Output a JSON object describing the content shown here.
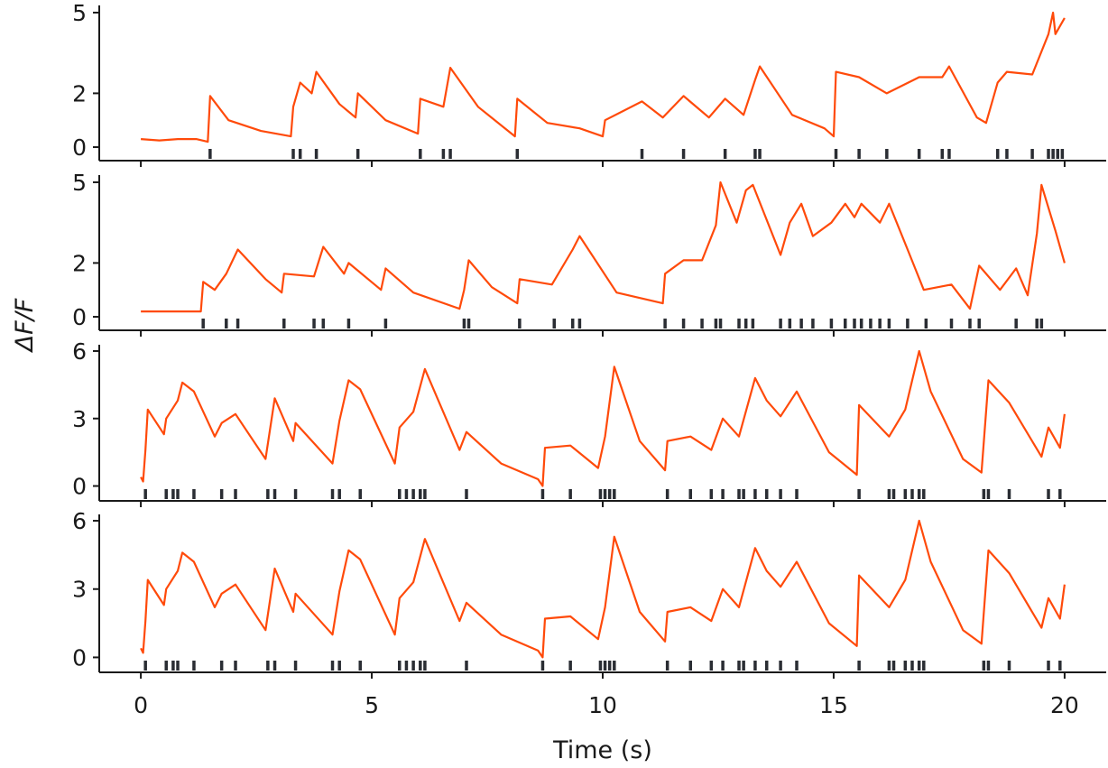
{
  "chart_data": {
    "type": "line",
    "xlabel": "Time (s)",
    "ylabel": "ΔF/F",
    "xlim": [
      -0.9,
      20.9
    ],
    "xticks": [
      0,
      5,
      10,
      15,
      20
    ],
    "trace_color": "#ff4a0a",
    "spike_color": "#2a2d33",
    "panels": [
      {
        "yticks": [
          0,
          2,
          5
        ],
        "ylim": [
          -0.2,
          5.2
        ],
        "spikes": [
          1.5,
          3.3,
          3.45,
          3.8,
          4.7,
          6.05,
          6.55,
          6.7,
          8.15,
          10.85,
          11.75,
          12.65,
          13.3,
          13.4,
          15.05,
          15.55,
          16.15,
          16.85,
          17.35,
          17.5,
          18.55,
          18.75,
          19.3,
          19.65,
          19.75,
          19.85,
          19.95
        ],
        "trace": [
          [
            0,
            0.3
          ],
          [
            0.4,
            0.25
          ],
          [
            0.8,
            0.3
          ],
          [
            1.2,
            0.3
          ],
          [
            1.45,
            0.2
          ],
          [
            1.5,
            1.9
          ],
          [
            1.9,
            1.0
          ],
          [
            2.6,
            0.6
          ],
          [
            3.25,
            0.4
          ],
          [
            3.3,
            1.5
          ],
          [
            3.45,
            2.4
          ],
          [
            3.7,
            2.0
          ],
          [
            3.8,
            2.8
          ],
          [
            4.3,
            1.6
          ],
          [
            4.65,
            1.1
          ],
          [
            4.7,
            2.0
          ],
          [
            5.3,
            1.0
          ],
          [
            6.0,
            0.5
          ],
          [
            6.05,
            1.8
          ],
          [
            6.55,
            1.5
          ],
          [
            6.7,
            2.95
          ],
          [
            7.3,
            1.5
          ],
          [
            8.1,
            0.4
          ],
          [
            8.15,
            1.8
          ],
          [
            8.8,
            0.9
          ],
          [
            9.5,
            0.7
          ],
          [
            10.0,
            0.4
          ],
          [
            10.05,
            1.0
          ],
          [
            10.85,
            1.7
          ],
          [
            11.3,
            1.1
          ],
          [
            11.75,
            1.9
          ],
          [
            12.3,
            1.1
          ],
          [
            12.65,
            1.8
          ],
          [
            13.05,
            1.2
          ],
          [
            13.3,
            2.5
          ],
          [
            13.4,
            3.0
          ],
          [
            14.1,
            1.2
          ],
          [
            14.8,
            0.7
          ],
          [
            15.0,
            0.4
          ],
          [
            15.05,
            2.8
          ],
          [
            15.55,
            2.6
          ],
          [
            16.15,
            2.0
          ],
          [
            16.85,
            2.6
          ],
          [
            17.35,
            2.6
          ],
          [
            17.5,
            3.0
          ],
          [
            18.1,
            1.1
          ],
          [
            18.3,
            0.9
          ],
          [
            18.55,
            2.4
          ],
          [
            18.75,
            2.8
          ],
          [
            19.3,
            2.7
          ],
          [
            19.65,
            4.2
          ],
          [
            19.75,
            5.0
          ],
          [
            19.8,
            4.2
          ],
          [
            20.0,
            4.8
          ]
        ]
      },
      {
        "yticks": [
          0,
          2,
          5
        ],
        "ylim": [
          -0.2,
          5.2
        ],
        "spikes": [
          1.35,
          1.85,
          2.1,
          3.1,
          3.75,
          3.95,
          4.5,
          5.3,
          7.0,
          7.1,
          8.2,
          8.95,
          9.35,
          9.5,
          11.35,
          11.75,
          12.15,
          12.45,
          12.55,
          12.95,
          13.1,
          13.25,
          13.85,
          14.05,
          14.3,
          14.55,
          14.95,
          15.25,
          15.45,
          15.6,
          15.8,
          16.0,
          16.2,
          16.6,
          17.0,
          17.55,
          17.95,
          18.15,
          18.95,
          19.4,
          19.5
        ],
        "trace": [
          [
            0,
            0.2
          ],
          [
            0.6,
            0.2
          ],
          [
            1.3,
            0.2
          ],
          [
            1.35,
            1.3
          ],
          [
            1.6,
            1.0
          ],
          [
            1.85,
            1.6
          ],
          [
            2.1,
            2.5
          ],
          [
            2.7,
            1.4
          ],
          [
            3.05,
            0.9
          ],
          [
            3.1,
            1.6
          ],
          [
            3.75,
            1.5
          ],
          [
            3.95,
            2.6
          ],
          [
            4.4,
            1.6
          ],
          [
            4.5,
            2.0
          ],
          [
            5.2,
            1.0
          ],
          [
            5.3,
            1.8
          ],
          [
            5.9,
            0.9
          ],
          [
            6.9,
            0.3
          ],
          [
            7.0,
            1.0
          ],
          [
            7.1,
            2.1
          ],
          [
            7.6,
            1.1
          ],
          [
            8.15,
            0.5
          ],
          [
            8.2,
            1.4
          ],
          [
            8.9,
            1.2
          ],
          [
            9.35,
            2.5
          ],
          [
            9.5,
            3.0
          ],
          [
            10.3,
            0.9
          ],
          [
            11.3,
            0.5
          ],
          [
            11.35,
            1.6
          ],
          [
            11.75,
            2.1
          ],
          [
            12.15,
            2.1
          ],
          [
            12.45,
            3.4
          ],
          [
            12.55,
            5.0
          ],
          [
            12.9,
            3.5
          ],
          [
            13.1,
            4.7
          ],
          [
            13.25,
            4.9
          ],
          [
            13.85,
            2.3
          ],
          [
            14.05,
            3.5
          ],
          [
            14.3,
            4.2
          ],
          [
            14.55,
            3.0
          ],
          [
            14.95,
            3.5
          ],
          [
            15.25,
            4.2
          ],
          [
            15.45,
            3.7
          ],
          [
            15.6,
            4.2
          ],
          [
            16.0,
            3.5
          ],
          [
            16.2,
            4.2
          ],
          [
            16.6,
            2.5
          ],
          [
            16.95,
            1.0
          ],
          [
            17.55,
            1.2
          ],
          [
            17.95,
            0.3
          ],
          [
            18.15,
            1.9
          ],
          [
            18.6,
            1.0
          ],
          [
            18.95,
            1.8
          ],
          [
            19.2,
            0.8
          ],
          [
            19.4,
            3.1
          ],
          [
            19.5,
            4.9
          ],
          [
            19.8,
            3.2
          ],
          [
            20.0,
            2.0
          ]
        ]
      },
      {
        "yticks": [
          0,
          3,
          6
        ],
        "ylim": [
          -0.3,
          6.2
        ],
        "spikes": [
          0.1,
          0.55,
          0.7,
          0.8,
          1.15,
          1.75,
          2.05,
          2.75,
          2.9,
          3.35,
          4.15,
          4.3,
          4.75,
          5.6,
          5.75,
          5.9,
          6.05,
          6.15,
          7.05,
          8.7,
          9.3,
          9.95,
          10.05,
          10.15,
          10.25,
          11.4,
          11.9,
          12.35,
          12.6,
          12.95,
          13.05,
          13.3,
          13.55,
          13.85,
          14.2,
          15.55,
          16.2,
          16.3,
          16.55,
          16.7,
          16.85,
          16.95,
          18.25,
          18.35,
          18.8,
          19.65,
          19.9
        ],
        "trace": [
          [
            0,
            0.4
          ],
          [
            0.05,
            0.2
          ],
          [
            0.1,
            1.6
          ],
          [
            0.15,
            3.4
          ],
          [
            0.5,
            2.3
          ],
          [
            0.55,
            3.0
          ],
          [
            0.8,
            3.8
          ],
          [
            0.9,
            4.6
          ],
          [
            1.15,
            4.2
          ],
          [
            1.6,
            2.2
          ],
          [
            1.75,
            2.8
          ],
          [
            2.05,
            3.2
          ],
          [
            2.7,
            1.2
          ],
          [
            2.9,
            3.9
          ],
          [
            3.3,
            2.0
          ],
          [
            3.35,
            2.8
          ],
          [
            4.15,
            1.0
          ],
          [
            4.3,
            2.9
          ],
          [
            4.5,
            4.7
          ],
          [
            4.75,
            4.3
          ],
          [
            5.5,
            1.0
          ],
          [
            5.6,
            2.6
          ],
          [
            5.9,
            3.3
          ],
          [
            6.15,
            5.2
          ],
          [
            6.9,
            1.6
          ],
          [
            7.05,
            2.4
          ],
          [
            7.8,
            1.0
          ],
          [
            8.6,
            0.3
          ],
          [
            8.7,
            0.0
          ],
          [
            8.75,
            1.7
          ],
          [
            9.3,
            1.8
          ],
          [
            9.9,
            0.8
          ],
          [
            10.05,
            2.2
          ],
          [
            10.25,
            5.3
          ],
          [
            10.8,
            2.0
          ],
          [
            11.35,
            0.7
          ],
          [
            11.4,
            2.0
          ],
          [
            11.9,
            2.2
          ],
          [
            12.35,
            1.6
          ],
          [
            12.6,
            3.0
          ],
          [
            12.95,
            2.2
          ],
          [
            13.3,
            4.8
          ],
          [
            13.55,
            3.8
          ],
          [
            13.85,
            3.1
          ],
          [
            14.2,
            4.2
          ],
          [
            14.9,
            1.5
          ],
          [
            15.5,
            0.5
          ],
          [
            15.55,
            3.6
          ],
          [
            16.2,
            2.2
          ],
          [
            16.55,
            3.4
          ],
          [
            16.85,
            6.0
          ],
          [
            17.1,
            4.2
          ],
          [
            17.8,
            1.2
          ],
          [
            18.2,
            0.6
          ],
          [
            18.35,
            4.7
          ],
          [
            18.8,
            3.7
          ],
          [
            19.5,
            1.3
          ],
          [
            19.65,
            2.6
          ],
          [
            19.9,
            1.7
          ],
          [
            20.0,
            3.2
          ]
        ]
      },
      {
        "yticks": [
          0,
          3,
          6
        ],
        "ylim": [
          -0.3,
          6.2
        ],
        "spikes": [
          0.1,
          0.55,
          0.7,
          0.8,
          1.15,
          1.75,
          2.05,
          2.75,
          2.9,
          3.35,
          4.15,
          4.3,
          4.75,
          5.6,
          5.75,
          5.9,
          6.05,
          6.15,
          7.05,
          8.7,
          9.3,
          9.95,
          10.05,
          10.15,
          10.25,
          11.4,
          11.9,
          12.35,
          12.6,
          12.95,
          13.05,
          13.3,
          13.55,
          13.85,
          14.2,
          15.55,
          16.2,
          16.3,
          16.55,
          16.7,
          16.85,
          16.95,
          18.25,
          18.35,
          18.8,
          19.65,
          19.9
        ],
        "trace": [
          [
            0,
            0.4
          ],
          [
            0.05,
            0.2
          ],
          [
            0.1,
            1.6
          ],
          [
            0.15,
            3.4
          ],
          [
            0.5,
            2.3
          ],
          [
            0.55,
            3.0
          ],
          [
            0.8,
            3.8
          ],
          [
            0.9,
            4.6
          ],
          [
            1.15,
            4.2
          ],
          [
            1.6,
            2.2
          ],
          [
            1.75,
            2.8
          ],
          [
            2.05,
            3.2
          ],
          [
            2.7,
            1.2
          ],
          [
            2.9,
            3.9
          ],
          [
            3.3,
            2.0
          ],
          [
            3.35,
            2.8
          ],
          [
            4.15,
            1.0
          ],
          [
            4.3,
            2.9
          ],
          [
            4.5,
            4.7
          ],
          [
            4.75,
            4.3
          ],
          [
            5.5,
            1.0
          ],
          [
            5.6,
            2.6
          ],
          [
            5.9,
            3.3
          ],
          [
            6.15,
            5.2
          ],
          [
            6.9,
            1.6
          ],
          [
            7.05,
            2.4
          ],
          [
            7.8,
            1.0
          ],
          [
            8.6,
            0.3
          ],
          [
            8.7,
            0.0
          ],
          [
            8.75,
            1.7
          ],
          [
            9.3,
            1.8
          ],
          [
            9.9,
            0.8
          ],
          [
            10.05,
            2.2
          ],
          [
            10.25,
            5.3
          ],
          [
            10.8,
            2.0
          ],
          [
            11.35,
            0.7
          ],
          [
            11.4,
            2.0
          ],
          [
            11.9,
            2.2
          ],
          [
            12.35,
            1.6
          ],
          [
            12.6,
            3.0
          ],
          [
            12.95,
            2.2
          ],
          [
            13.3,
            4.8
          ],
          [
            13.55,
            3.8
          ],
          [
            13.85,
            3.1
          ],
          [
            14.2,
            4.2
          ],
          [
            14.9,
            1.5
          ],
          [
            15.5,
            0.5
          ],
          [
            15.55,
            3.6
          ],
          [
            16.2,
            2.2
          ],
          [
            16.55,
            3.4
          ],
          [
            16.85,
            6.0
          ],
          [
            17.1,
            4.2
          ],
          [
            17.8,
            1.2
          ],
          [
            18.2,
            0.6
          ],
          [
            18.35,
            4.7
          ],
          [
            18.8,
            3.7
          ],
          [
            19.5,
            1.3
          ],
          [
            19.65,
            2.6
          ],
          [
            19.9,
            1.7
          ],
          [
            20.0,
            3.2
          ]
        ]
      }
    ]
  }
}
